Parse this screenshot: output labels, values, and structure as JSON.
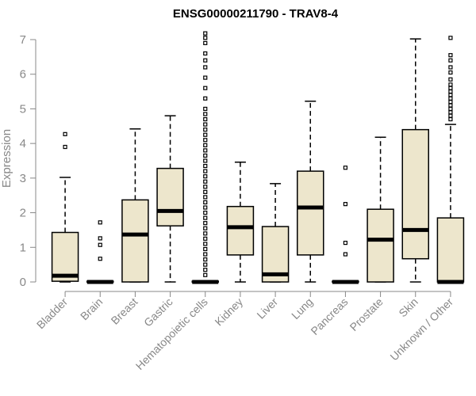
{
  "chart_data": {
    "type": "box",
    "title": "ENSG00000211790 - TRAV8-4",
    "xlabel": "",
    "ylabel": "Expression",
    "ylim": [
      0,
      7
    ],
    "yticks": [
      0,
      1,
      2,
      3,
      4,
      5,
      6,
      7
    ],
    "yticklabels": [
      "0",
      "1",
      "2",
      "3",
      "4",
      "5",
      "6",
      "7"
    ],
    "categories": [
      "Bladder",
      "Brain",
      "Breast",
      "Gastric",
      "Hematopoietic cells",
      "Kidney",
      "Liver",
      "Lung",
      "Pancreas",
      "Prostate",
      "Skin",
      "Unknown / Other"
    ],
    "boxes": [
      {
        "category": "Bladder",
        "lower_whisker": 0,
        "q1": 0.02,
        "median": 0.18,
        "q3": 1.43,
        "upper_whisker": 3.02,
        "outliers": [
          3.9,
          4.27
        ]
      },
      {
        "category": "Brain",
        "lower_whisker": 0,
        "q1": 0,
        "median": 0,
        "q3": 0.02,
        "upper_whisker": 0.03,
        "outliers": [
          0.67,
          1.07,
          1.26,
          1.72
        ]
      },
      {
        "category": "Breast",
        "lower_whisker": 0,
        "q1": 0,
        "median": 1.37,
        "q3": 2.37,
        "upper_whisker": 4.42,
        "outliers": []
      },
      {
        "category": "Gastric",
        "lower_whisker": 0,
        "q1": 1.62,
        "median": 2.05,
        "q3": 3.28,
        "upper_whisker": 4.8,
        "outliers": []
      },
      {
        "category": "Hematopoietic cells",
        "lower_whisker": 0,
        "q1": 0,
        "median": 0,
        "q3": 0.02,
        "upper_whisker": 0.03,
        "outliers": [
          0.2,
          0.35,
          0.5,
          0.65,
          0.8,
          0.95,
          1.1,
          1.25,
          1.4,
          1.55,
          1.7,
          1.85,
          2.0,
          2.15,
          2.3,
          2.45,
          2.6,
          2.75,
          2.9,
          3.05,
          3.2,
          3.35,
          3.5,
          3.65,
          3.8,
          3.95,
          4.1,
          4.25,
          4.4,
          4.55,
          4.7,
          4.85,
          5.0,
          5.3,
          5.6,
          5.9,
          6.2,
          6.4,
          6.6,
          6.9,
          7.05,
          7.18
        ]
      },
      {
        "category": "Kidney",
        "lower_whisker": 0,
        "q1": 0.78,
        "median": 1.58,
        "q3": 2.18,
        "upper_whisker": 3.46,
        "outliers": []
      },
      {
        "category": "Liver",
        "lower_whisker": 0,
        "q1": 0,
        "median": 0.22,
        "q3": 1.6,
        "upper_whisker": 2.84,
        "outliers": []
      },
      {
        "category": "Lung",
        "lower_whisker": 0,
        "q1": 0.78,
        "median": 2.15,
        "q3": 3.2,
        "upper_whisker": 5.22,
        "outliers": []
      },
      {
        "category": "Pancreas",
        "lower_whisker": 0,
        "q1": 0,
        "median": 0,
        "q3": 0.02,
        "upper_whisker": 0.03,
        "outliers": [
          0.8,
          1.13,
          2.25,
          3.3
        ]
      },
      {
        "category": "Prostate",
        "lower_whisker": 0,
        "q1": 0,
        "median": 1.22,
        "q3": 2.1,
        "upper_whisker": 4.18,
        "outliers": []
      },
      {
        "category": "Skin",
        "lower_whisker": 0,
        "q1": 0.67,
        "median": 1.5,
        "q3": 4.4,
        "upper_whisker": 7.02,
        "outliers": []
      },
      {
        "category": "Unknown / Other",
        "lower_whisker": 0,
        "q1": 0,
        "median": 0,
        "q3": 1.85,
        "upper_whisker": 4.55,
        "outliers": [
          4.7,
          4.8,
          4.9,
          5.0,
          5.1,
          5.2,
          5.3,
          5.4,
          5.5,
          5.6,
          5.7,
          5.85,
          6.05,
          6.2,
          6.4,
          6.55,
          7.05
        ]
      }
    ]
  }
}
